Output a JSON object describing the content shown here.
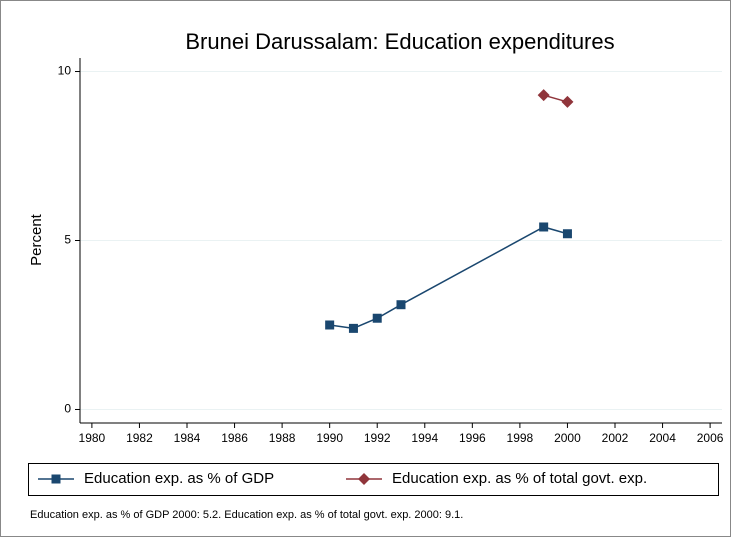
{
  "chart_data": {
    "type": "line",
    "title": "Brunei Darussalam: Education expenditures",
    "y_label": "Percent",
    "x": [
      1990,
      1991,
      1992,
      1993,
      1999,
      2000
    ],
    "series": [
      {
        "name": "Education exp. as % of GDP",
        "color": "#1a476f",
        "marker": "square",
        "values": [
          2.5,
          2.4,
          2.7,
          3.1,
          5.4,
          5.2
        ]
      },
      {
        "name": "Education exp. as % of total govt. exp.",
        "color": "#90353b",
        "marker": "diamond",
        "values": [
          null,
          null,
          null,
          null,
          9.3,
          9.1
        ]
      }
    ],
    "xlim": [
      1979.5,
      2006.5
    ],
    "xticks": [
      1980,
      1982,
      1984,
      1986,
      1988,
      1990,
      1992,
      1994,
      1996,
      1998,
      2000,
      2002,
      2004,
      2006
    ],
    "ylim": [
      -0.4,
      10.4
    ],
    "yticks": [
      0,
      5,
      10
    ],
    "grid": true,
    "legend": "bottom",
    "note": "Education exp. as % of GDP 2000: 5.2. Education exp. as % of total govt. exp. 2000: 9.1."
  }
}
